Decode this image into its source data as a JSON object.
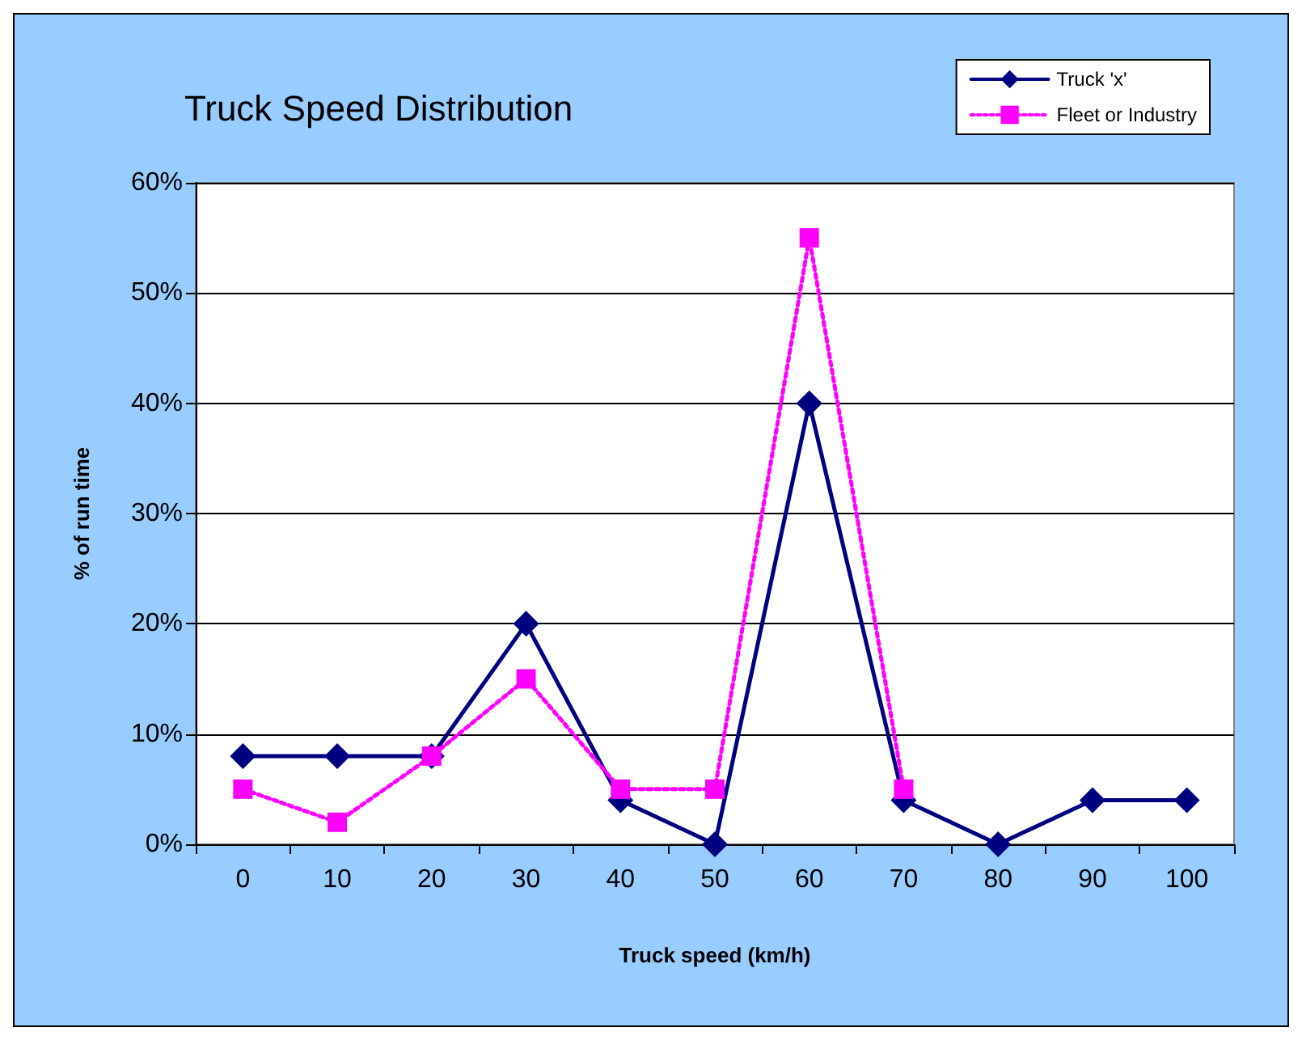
{
  "chart_data": {
    "type": "line",
    "title": "Truck Speed Distribution",
    "xlabel": "Truck speed (km/h)",
    "ylabel": "% of run time",
    "categories": [
      "0",
      "10",
      "20",
      "30",
      "40",
      "50",
      "60",
      "70",
      "80",
      "90",
      "100"
    ],
    "series": [
      {
        "name": "Truck 'x'",
        "color": "#000080",
        "marker": "diamond",
        "line_style": "solid",
        "values": [
          8,
          8,
          8,
          20,
          4,
          0,
          40,
          4,
          0,
          4,
          4
        ]
      },
      {
        "name": "Fleet or Industry",
        "color": "#ff00ff",
        "marker": "square",
        "line_style": "dotted",
        "values": [
          5,
          2,
          8,
          15,
          5,
          5,
          55,
          5,
          null,
          null,
          null
        ]
      }
    ],
    "ylim": [
      0,
      60
    ],
    "yticks": [
      {
        "value": 0,
        "label": "0%"
      },
      {
        "value": 10,
        "label": "10%"
      },
      {
        "value": 20,
        "label": "20%"
      },
      {
        "value": 30,
        "label": "30%"
      },
      {
        "value": 40,
        "label": "40%"
      },
      {
        "value": 50,
        "label": "50%"
      },
      {
        "value": 60,
        "label": "60%"
      }
    ],
    "grid": "y",
    "legend": "top right"
  }
}
